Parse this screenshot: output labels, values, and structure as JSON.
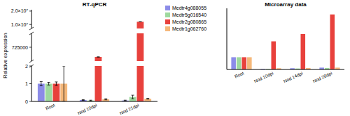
{
  "chart_data": [
    {
      "type": "bar",
      "title": "RT-qPCR",
      "y_label": "Relative expression",
      "categories": [
        "Root",
        "Nod 10dpi",
        "Nod 21dpi"
      ],
      "ylim": [
        0,
        21000000
      ],
      "y_breaks": [
        [
          2,
          675000
        ],
        [
          775000,
          7000000
        ]
      ],
      "yticks": [
        0,
        1,
        2,
        725000,
        {
          "value": 10000000,
          "label": "1.0×10⁷"
        },
        {
          "value": 20000000,
          "label": "2.0×10⁷"
        }
      ],
      "legend": "right",
      "series": [
        {
          "name": "Medtr4g088055",
          "color": "#8c8ce8",
          "values": [
            1,
            0.08,
            0.05
          ],
          "errors": [
            0.12,
            0.02,
            0.02
          ]
        },
        {
          "name": "Medtr5g016540",
          "color": "#9ed99e",
          "values": [
            1,
            0.05,
            0.25
          ],
          "errors": [
            0.08,
            0.02,
            0.1
          ]
        },
        {
          "name": "Medtr2g080865",
          "color": "#e8413c",
          "values": [
            1,
            690000,
            12000000
          ],
          "errors": [
            0.1,
            0,
            0
          ]
        },
        {
          "name": "Medtr1g062760",
          "color": "#f5b87a",
          "values": [
            1,
            0.12,
            0.15
          ],
          "errors": [
            1,
            0.03,
            0.02
          ]
        }
      ]
    },
    {
      "type": "bar",
      "title": "Microarray data",
      "categories": [
        "Root",
        "Nod 10dpi",
        "Nod 14dpi",
        "Nod 28dpi"
      ],
      "ylim": [
        0,
        5
      ],
      "tick_labels": "x",
      "series": [
        {
          "color": "#8c8ce8",
          "values": [
            1,
            0.05,
            0.1,
            0.15
          ]
        },
        {
          "color": "#9ed99e",
          "values": [
            1,
            0.05,
            0.08,
            0.12
          ]
        },
        {
          "color": "#e8413c",
          "values": [
            1,
            2.3,
            2.9,
            4.5
          ]
        },
        {
          "color": "#f5b87a",
          "values": [
            1,
            0.1,
            0.12,
            0.15
          ]
        }
      ]
    }
  ]
}
